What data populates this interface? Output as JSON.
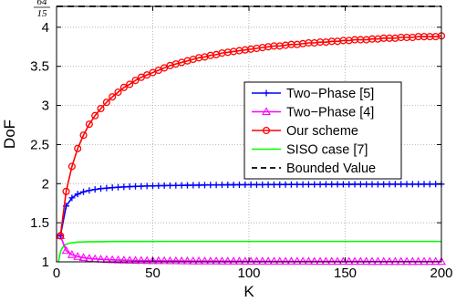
{
  "chart_data": {
    "type": "line",
    "title": "",
    "xlabel": "K",
    "ylabel": "DoF",
    "xlim": [
      0,
      200
    ],
    "ylim": [
      1,
      4.266666666666667
    ],
    "xticks": [
      0,
      50,
      100,
      150,
      200
    ],
    "xtick_labels": [
      "0",
      "50",
      "100",
      "150",
      "200"
    ],
    "yticks": [
      1,
      1.5,
      2,
      2.5,
      3,
      3.5,
      4
    ],
    "ytick_labels": [
      "1",
      "1.5",
      "2",
      "2.5",
      "3",
      "3.5",
      "4"
    ],
    "ytick_extra": {
      "value": 4.266666666666667,
      "numerator": "64",
      "denominator": "15"
    },
    "grid": true,
    "legend_position": "right-center",
    "series": [
      {
        "name": "Two−Phase [5]",
        "color": "#0000ff",
        "marker": "plus",
        "x": [
          2,
          5,
          8,
          11,
          14,
          17,
          20,
          23,
          26,
          29,
          32,
          35,
          38,
          41,
          44,
          47,
          50,
          53,
          56,
          59,
          62,
          65,
          68,
          71,
          74,
          77,
          80,
          83,
          86,
          89,
          92,
          95,
          98,
          101,
          104,
          107,
          110,
          113,
          116,
          119,
          122,
          125,
          128,
          131,
          134,
          137,
          140,
          143,
          146,
          149,
          152,
          155,
          158,
          161,
          164,
          167,
          170,
          173,
          176,
          179,
          182,
          185,
          188,
          191,
          194,
          197,
          200
        ],
        "values": [
          1.333,
          1.714,
          1.818,
          1.867,
          1.895,
          1.913,
          1.926,
          1.936,
          1.943,
          1.949,
          1.954,
          1.958,
          1.962,
          1.965,
          1.967,
          1.97,
          1.971,
          1.973,
          1.975,
          1.976,
          1.977,
          1.978,
          1.979,
          1.98,
          1.981,
          1.982,
          1.983,
          1.983,
          1.984,
          1.985,
          1.985,
          1.986,
          1.986,
          1.987,
          1.987,
          1.987,
          1.988,
          1.988,
          1.988,
          1.989,
          1.989,
          1.989,
          1.99,
          1.99,
          1.99,
          1.99,
          1.991,
          1.991,
          1.991,
          1.991,
          1.991,
          1.992,
          1.992,
          1.992,
          1.992,
          1.992,
          1.992,
          1.993,
          1.993,
          1.993,
          1.993,
          1.993,
          1.993,
          1.993,
          1.993,
          1.994,
          1.994
        ]
      },
      {
        "name": "Two−Phase [4]",
        "color": "#ff00ff",
        "marker": "triangle",
        "x": [
          2,
          5,
          8,
          11,
          14,
          17,
          20,
          23,
          26,
          29,
          32,
          35,
          38,
          41,
          44,
          47,
          50,
          53,
          56,
          59,
          62,
          65,
          68,
          71,
          74,
          77,
          80,
          83,
          86,
          89,
          92,
          95,
          98,
          101,
          104,
          107,
          110,
          113,
          116,
          119,
          122,
          125,
          128,
          131,
          134,
          137,
          140,
          143,
          146,
          149,
          152,
          155,
          158,
          161,
          164,
          167,
          170,
          173,
          176,
          179,
          182,
          185,
          188,
          191,
          194,
          197,
          200
        ],
        "values": [
          1.333,
          1.143,
          1.091,
          1.067,
          1.053,
          1.043,
          1.037,
          1.032,
          1.028,
          1.025,
          1.023,
          1.021,
          1.019,
          1.017,
          1.016,
          1.015,
          1.014,
          1.014,
          1.013,
          1.012,
          1.012,
          1.011,
          1.011,
          1.01,
          1.01,
          1.009,
          1.009,
          1.009,
          1.008,
          1.008,
          1.008,
          1.008,
          1.007,
          1.007,
          1.007,
          1.007,
          1.007,
          1.006,
          1.006,
          1.006,
          1.006,
          1.006,
          1.006,
          1.006,
          1.005,
          1.005,
          1.005,
          1.005,
          1.005,
          1.005,
          1.005,
          1.005,
          1.005,
          1.005,
          1.004,
          1.004,
          1.004,
          1.004,
          1.004,
          1.004,
          1.004,
          1.004,
          1.004,
          1.004,
          1.004,
          1.004,
          1.004
        ]
      },
      {
        "name": "Our scheme",
        "color": "#ff0000",
        "marker": "circle",
        "x": [
          2,
          5,
          8,
          11,
          14,
          17,
          20,
          23,
          26,
          29,
          32,
          35,
          38,
          41,
          44,
          47,
          50,
          53,
          56,
          59,
          62,
          65,
          68,
          71,
          74,
          77,
          80,
          83,
          86,
          89,
          92,
          95,
          98,
          101,
          104,
          107,
          110,
          113,
          116,
          119,
          122,
          125,
          128,
          131,
          134,
          137,
          140,
          143,
          146,
          149,
          152,
          155,
          158,
          161,
          164,
          167,
          170,
          173,
          176,
          179,
          182,
          185,
          188,
          191,
          194,
          197,
          200
        ],
        "values": [
          1.333,
          1.9,
          2.22,
          2.45,
          2.62,
          2.76,
          2.87,
          2.96,
          3.04,
          3.11,
          3.17,
          3.23,
          3.27,
          3.32,
          3.36,
          3.39,
          3.42,
          3.45,
          3.48,
          3.51,
          3.53,
          3.55,
          3.57,
          3.59,
          3.61,
          3.62,
          3.64,
          3.65,
          3.67,
          3.68,
          3.69,
          3.7,
          3.71,
          3.72,
          3.73,
          3.74,
          3.75,
          3.76,
          3.76,
          3.77,
          3.78,
          3.78,
          3.79,
          3.8,
          3.8,
          3.81,
          3.81,
          3.82,
          3.82,
          3.83,
          3.83,
          3.84,
          3.84,
          3.84,
          3.85,
          3.85,
          3.86,
          3.86,
          3.86,
          3.87,
          3.87,
          3.87,
          3.88,
          3.88,
          3.88,
          3.88,
          3.89
        ]
      },
      {
        "name": "SISO case [7]",
        "color": "#00ff00",
        "marker": "none",
        "x": [
          1,
          2,
          3,
          4,
          5,
          6,
          8,
          10,
          12,
          15,
          20,
          25,
          30,
          40,
          60,
          80,
          100,
          150,
          200
        ],
        "values": [
          1.0,
          1.125,
          1.18,
          1.21,
          1.225,
          1.235,
          1.245,
          1.25,
          1.253,
          1.256,
          1.258,
          1.259,
          1.26,
          1.26,
          1.261,
          1.261,
          1.261,
          1.261,
          1.261
        ]
      },
      {
        "name": "Bounded Value",
        "color": "#000000",
        "marker": "none",
        "dash": "dashed",
        "x": [
          0,
          200
        ],
        "values": [
          4.266666666666667,
          4.266666666666667
        ]
      }
    ]
  }
}
